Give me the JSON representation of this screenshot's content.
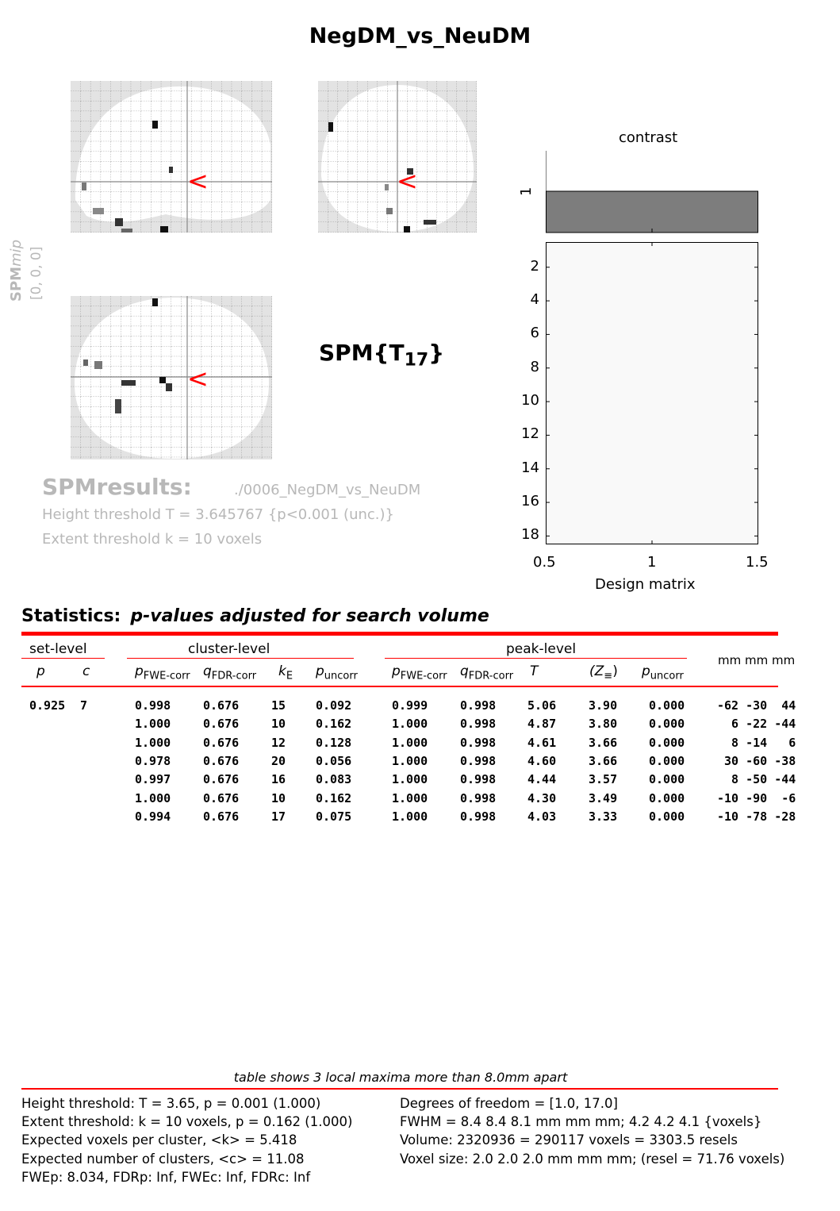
{
  "title": "NegDM_vs_NeuDM",
  "mip": {
    "label_spm": "SPM",
    "label_mip": "mip",
    "label_coords": "[0, 0, 0]",
    "cursor_glyph": "<"
  },
  "stat_label": {
    "main": "SPM{T",
    "sub": "17",
    "close": "}"
  },
  "design": {
    "contrast_label": "contrast",
    "contrast_tick": "1",
    "xlabel": "Design matrix",
    "xticks": [
      "0.5",
      "1",
      "1.5"
    ],
    "yticks": [
      "2",
      "4",
      "6",
      "8",
      "10",
      "12",
      "14",
      "16",
      "18"
    ]
  },
  "results": {
    "title": "SPMresults:",
    "path": "./0006_NegDM_vs_NeuDM",
    "height_threshold": "Height threshold T = 3.645767  {p<0.001 (unc.)}",
    "extent_threshold": "Extent threshold k = 10 voxels"
  },
  "stats": {
    "title": "Statistics:",
    "subtitle": "p-values adjusted for search volume",
    "groups": {
      "set": "set-level",
      "cluster": "cluster-level",
      "peak": "peak-level",
      "mm": "mm mm mm"
    },
    "cols": {
      "set_p": "p",
      "set_c": "c",
      "cl_pfwe": "p",
      "cl_pfwe_sub": "FWE-corr",
      "cl_qfdr": "q",
      "cl_qfdr_sub": "FDR-corr",
      "cl_ke": "k",
      "cl_ke_sub": "E",
      "cl_punc": "p",
      "cl_punc_sub": "uncorr",
      "pk_pfwe": "p",
      "pk_pfwe_sub": "FWE-corr",
      "pk_qfdr": "q",
      "pk_qfdr_sub": "FDR-corr",
      "pk_t": "T",
      "pk_z": "(Z",
      "pk_z_sub": "≡",
      "pk_z_close": ")",
      "pk_punc": "p",
      "pk_punc_sub": "uncorr"
    },
    "rows": [
      [
        "0.925",
        "7",
        "0.998",
        "0.676",
        "15",
        "0.092",
        "0.999",
        "0.998",
        "5.06",
        "3.90",
        "0.000",
        "-62 -30  44"
      ],
      [
        "",
        "",
        "1.000",
        "0.676",
        "10",
        "0.162",
        "1.000",
        "0.998",
        "4.87",
        "3.80",
        "0.000",
        "  6 -22 -44"
      ],
      [
        "",
        "",
        "1.000",
        "0.676",
        "12",
        "0.128",
        "1.000",
        "0.998",
        "4.61",
        "3.66",
        "0.000",
        "  8 -14   6"
      ],
      [
        "",
        "",
        "0.978",
        "0.676",
        "20",
        "0.056",
        "1.000",
        "0.998",
        "4.60",
        "3.66",
        "0.000",
        " 30 -60 -38"
      ],
      [
        "",
        "",
        "0.997",
        "0.676",
        "16",
        "0.083",
        "1.000",
        "0.998",
        "4.44",
        "3.57",
        "0.000",
        "  8 -50 -44"
      ],
      [
        "",
        "",
        "1.000",
        "0.676",
        "10",
        "0.162",
        "1.000",
        "0.998",
        "4.30",
        "3.49",
        "0.000",
        "-10 -90  -6"
      ],
      [
        "",
        "",
        "0.994",
        "0.676",
        "17",
        "0.075",
        "1.000",
        "0.998",
        "4.03",
        "3.33",
        "0.000",
        "-10 -78 -28"
      ]
    ]
  },
  "footnote": "table shows 3 local maxima more than 8.0mm apart",
  "footer_left": [
    "Height threshold: T = 3.65, p = 0.001 (1.000)",
    "Extent threshold: k = 10 voxels, p = 0.162 (1.000)",
    "Expected voxels per cluster, <k> = 5.418",
    "Expected number of clusters, <c> = 11.08",
    "FWEp: 8.034, FDRp: Inf, FWEc: Inf, FDRc: Inf"
  ],
  "footer_right": [
    "Degrees of freedom = [1.0, 17.0]",
    "FWHM = 8.4 8.4 8.1 mm mm mm; 4.2 4.2 4.1 {voxels}",
    "Volume: 2320936 = 290117 voxels = 3303.5 resels",
    "Voxel size: 2.0 2.0 2.0 mm mm mm; (resel = 71.76 voxels)"
  ]
}
